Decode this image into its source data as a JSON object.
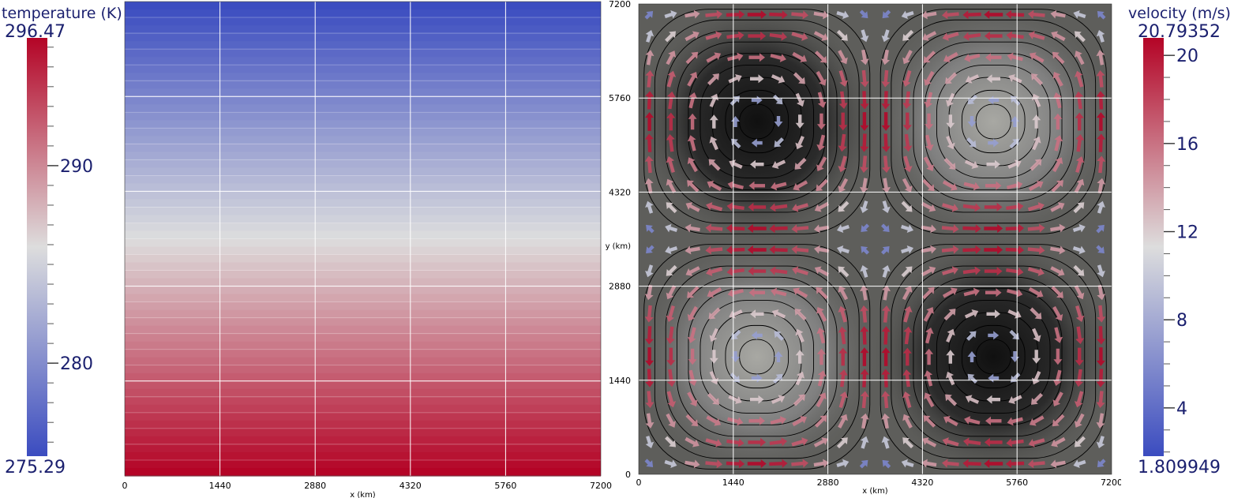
{
  "chart_data": [
    {
      "type": "heatmap",
      "name": "temperature-field",
      "colorbar": {
        "title": "temperature (K)",
        "max_label": "296.47",
        "min_label": "275.29",
        "range": [
          275.29,
          296.47
        ],
        "ticks": [
          280,
          290
        ],
        "tick_labels": [
          "280",
          "290"
        ],
        "colormap": [
          "#3b4cc0",
          "#dddddd",
          "#b40426"
        ]
      },
      "xlabel": "x (km)",
      "xlim": [
        0,
        7200
      ],
      "ylim": [
        0,
        7200
      ],
      "x_ticks": [
        0,
        1440,
        2880,
        4320,
        5760,
        7200
      ],
      "x_tick_labels": [
        "0",
        "1440",
        "2880",
        "4320",
        "5760",
        "7200"
      ],
      "grid": true,
      "field": {
        "direction": "vertical",
        "top_value": 275.29,
        "bottom_value": 296.47,
        "bands": 60
      }
    },
    {
      "type": "vector",
      "name": "velocity-field",
      "colorbar": {
        "title": "velocity (m/s)",
        "max_label": "20.79352",
        "min_label": "1.809949",
        "range": [
          1.809949,
          20.79352
        ],
        "ticks": [
          4,
          8,
          12,
          16,
          20
        ],
        "tick_labels": [
          "4",
          "8",
          "12",
          "16",
          "20"
        ],
        "colormap": [
          "#3b4cc0",
          "#dddddd",
          "#b40426"
        ]
      },
      "xlabel": "x (km)",
      "ylabel": "y (km)",
      "xlim": [
        0,
        7200
      ],
      "ylim": [
        0,
        7200
      ],
      "x_ticks": [
        0,
        1440,
        2880,
        4320,
        5760,
        7200
      ],
      "x_tick_labels": [
        "0",
        "1440",
        "2880",
        "4320",
        "5760",
        "7200"
      ],
      "y_ticks": [
        0,
        1440,
        2880,
        4320,
        5760,
        7200
      ],
      "y_tick_labels": [
        "0",
        "1440",
        "2880",
        "4320",
        "5760",
        "7200"
      ],
      "grid": true,
      "vortices": [
        {
          "x": 1800,
          "y": 5400,
          "shade": "dark"
        },
        {
          "x": 5400,
          "y": 5400,
          "shade": "light"
        },
        {
          "x": 1800,
          "y": 1800,
          "shade": "light"
        },
        {
          "x": 5400,
          "y": 1800,
          "shade": "dark"
        }
      ],
      "background_color": "#5e5e5b"
    }
  ]
}
